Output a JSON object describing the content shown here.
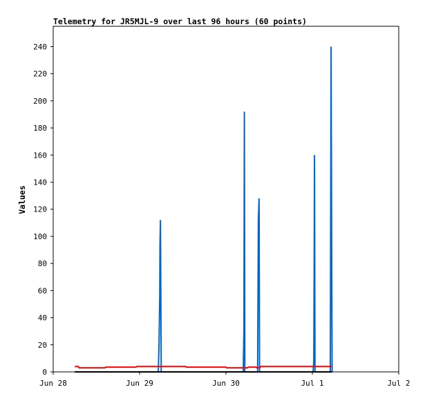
{
  "chart_data": {
    "type": "line",
    "title": "Telemetry for JR5MJL-9 over last 96 hours (60 points)",
    "xlabel": "",
    "ylabel": "Values",
    "x_ticks": [
      "Jun 28",
      "Jun 29",
      "Jun 30",
      "Jul 1",
      "Jul 2"
    ],
    "xlim": [
      "2023-06-28 00:00",
      "2023-07-02 00:00"
    ],
    "y_ticks": [
      "0",
      "20",
      "40",
      "60",
      "80",
      "100",
      "120",
      "140",
      "160",
      "180",
      "200",
      "220",
      "240"
    ],
    "ylim": [
      0,
      255
    ],
    "grid": false,
    "legend": "none",
    "series": [
      {
        "color": "#0066cc",
        "line_width": 2,
        "points": [
          [
            "2023-06-28 06:00",
            0
          ],
          [
            "2023-06-29 05:12",
            0
          ],
          [
            "2023-06-29 05:24",
            20
          ],
          [
            "2023-06-29 05:36",
            56
          ],
          [
            "2023-06-29 05:40",
            93
          ],
          [
            "2023-06-29 05:48",
            112
          ],
          [
            "2023-06-29 06:00",
            0
          ],
          [
            "2023-06-30 04:48",
            0
          ],
          [
            "2023-06-30 05:00",
            32
          ],
          [
            "2023-06-30 05:06",
            192
          ],
          [
            "2023-06-30 05:14",
            0
          ],
          [
            "2023-06-30 08:48",
            0
          ],
          [
            "2023-06-30 09:00",
            112
          ],
          [
            "2023-06-30 09:12",
            128
          ],
          [
            "2023-06-30 09:20",
            0
          ],
          [
            "2023-07-01 00:12",
            0
          ],
          [
            "2023-07-01 00:24",
            8
          ],
          [
            "2023-07-01 00:30",
            72
          ],
          [
            "2023-07-01 00:36",
            160
          ],
          [
            "2023-07-01 00:44",
            0
          ],
          [
            "2023-07-01 05:00",
            0
          ],
          [
            "2023-07-01 05:12",
            240
          ],
          [
            "2023-07-01 05:24",
            64
          ],
          [
            "2023-07-01 05:30",
            0
          ]
        ]
      },
      {
        "color": "#ff0000",
        "line_width": 2,
        "points": [
          [
            "2023-06-28 06:00",
            4
          ],
          [
            "2023-06-28 07:00",
            4
          ],
          [
            "2023-06-28 07:12",
            3
          ],
          [
            "2023-06-28 14:24",
            3
          ],
          [
            "2023-06-28 14:36",
            3.5
          ],
          [
            "2023-06-28 23:00",
            3.5
          ],
          [
            "2023-06-28 23:12",
            4
          ],
          [
            "2023-06-29 12:48",
            4
          ],
          [
            "2023-06-29 13:00",
            3.5
          ],
          [
            "2023-06-30 00:00",
            3.5
          ],
          [
            "2023-06-30 00:12",
            3
          ],
          [
            "2023-06-30 06:00",
            3
          ],
          [
            "2023-06-30 06:12",
            3.5
          ],
          [
            "2023-06-30 08:24",
            3.5
          ],
          [
            "2023-06-30 08:36",
            3
          ],
          [
            "2023-06-30 09:24",
            3
          ],
          [
            "2023-06-30 09:36",
            4
          ],
          [
            "2023-07-01 05:30",
            4
          ]
        ]
      },
      {
        "color": "#000000",
        "line_width": 2,
        "points": [
          [
            "2023-06-28 06:00",
            0
          ],
          [
            "2023-07-01 05:30",
            0
          ]
        ]
      }
    ]
  }
}
